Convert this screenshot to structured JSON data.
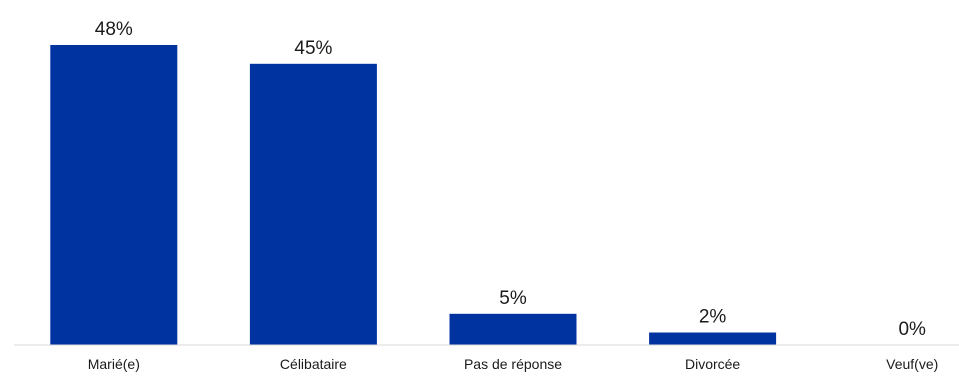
{
  "chart_data": {
    "type": "bar",
    "categories": [
      "Marié(e)",
      "Célibataire",
      "Pas de réponse",
      "Divorcée",
      "Veuf(ve)"
    ],
    "values": [
      48,
      45,
      5,
      2,
      0
    ],
    "data_labels": [
      "48%",
      "45%",
      "5%",
      "2%",
      "0%"
    ],
    "title": "",
    "xlabel": "",
    "ylabel": "",
    "ylim": [
      0,
      48
    ],
    "grid": false,
    "legend": "none",
    "bar_color": "#0033a0"
  }
}
